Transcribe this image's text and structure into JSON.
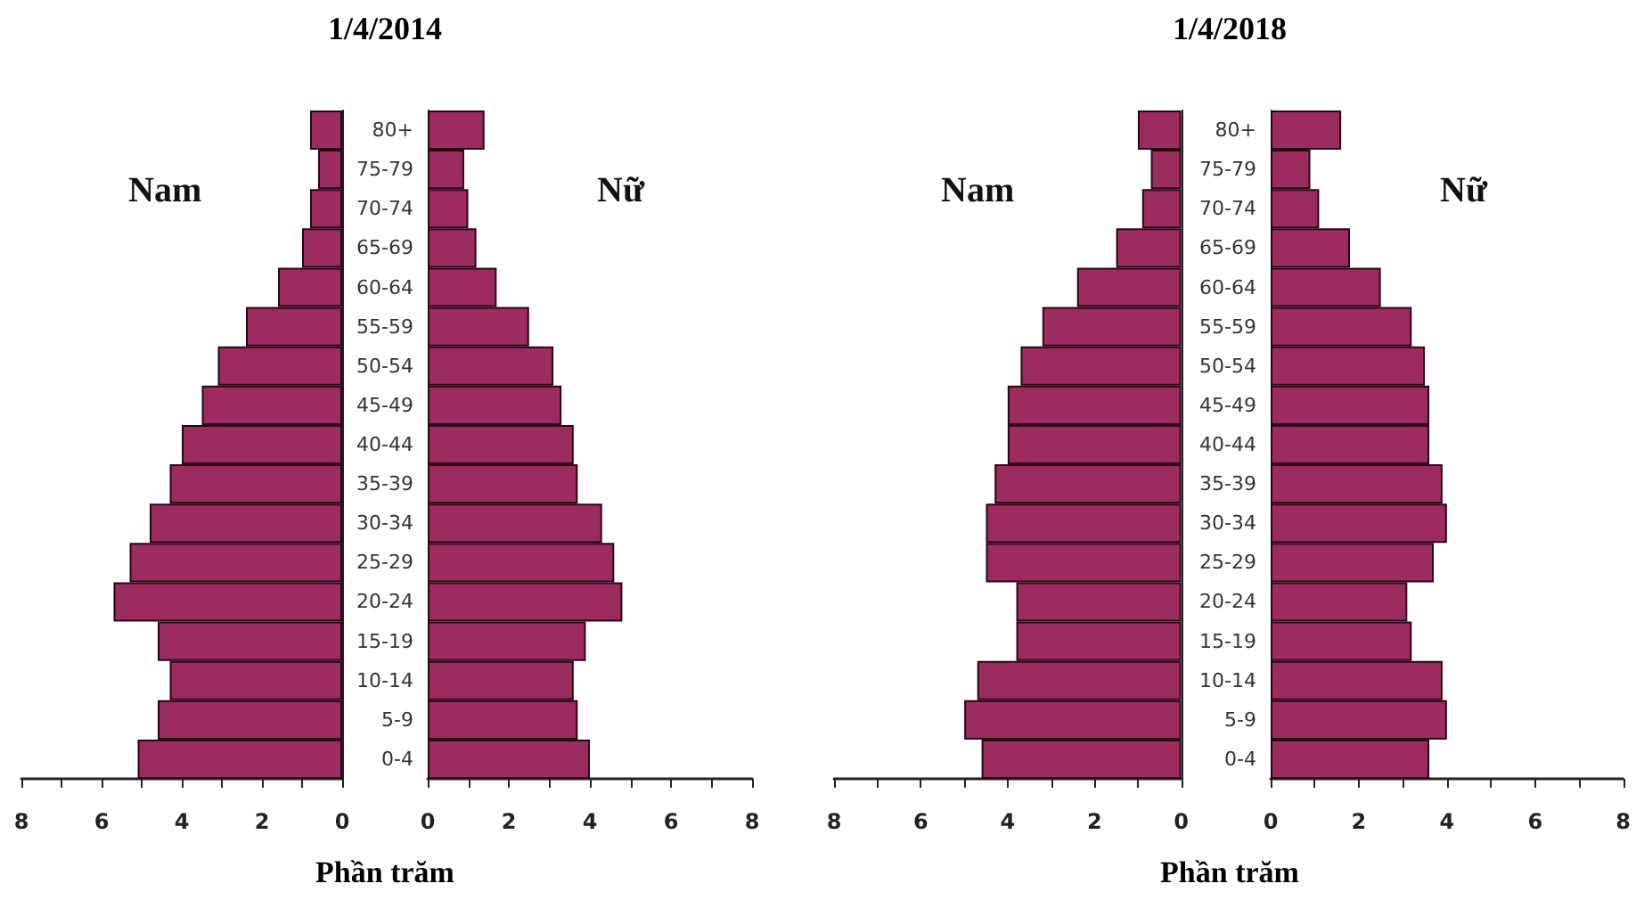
{
  "chart_data": [
    {
      "type": "bar",
      "orientation": "horizontal",
      "title": "1/4/2014",
      "xlabel": "Phần trăm",
      "annotations": [
        "Nam"
      ],
      "categories": [
        null,
        null,
        null,
        null,
        null,
        null,
        null,
        null,
        null,
        null,
        null,
        null,
        null,
        null,
        null,
        null,
        null
      ],
      "values": [
        0.8,
        0.6,
        0.8,
        1.0,
        1.6,
        2.4,
        3.1,
        3.5,
        4.0,
        4.3,
        4.8,
        5.3,
        5.7,
        4.6,
        4.3,
        4.6,
        5.1
      ],
      "color": "#9c2b5f",
      "xlim": [
        8,
        0
      ],
      "xticks": [
        8,
        {
          "value": 7,
          "label": null
        },
        6,
        {
          "value": 5,
          "label": null
        },
        4,
        {
          "value": 3,
          "label": null
        },
        2,
        {
          "value": 1,
          "label": null
        },
        0
      ],
      "tick_labels": "x"
    },
    {
      "type": "bar",
      "orientation": "horizontal",
      "annotations": [
        "Nữ"
      ],
      "categories": [
        "80+",
        "75-79",
        "70-74",
        "65-69",
        "60-64",
        "55-59",
        "50-54",
        "45-49",
        "40-44",
        "35-39",
        "30-34",
        "25-29",
        "20-24",
        "15-19",
        "10-14",
        "5-9",
        "0-4"
      ],
      "values": [
        1.4,
        0.9,
        1.0,
        1.2,
        1.7,
        2.5,
        3.1,
        3.3,
        3.6,
        3.7,
        4.3,
        4.6,
        4.8,
        3.9,
        3.6,
        3.7,
        4.0
      ],
      "color": "#9c2b5f",
      "xlim": [
        0,
        8
      ],
      "xticks": [
        0,
        {
          "value": 1,
          "label": null
        },
        2,
        {
          "value": 3,
          "label": null
        },
        4,
        {
          "value": 5,
          "label": null
        },
        6,
        {
          "value": 7,
          "label": null
        },
        8
      ]
    },
    {
      "type": "bar",
      "orientation": "horizontal",
      "title": "1/4/2018",
      "xlabel": "Phần trăm",
      "annotations": [
        "Nam"
      ],
      "categories": [
        null,
        null,
        null,
        null,
        null,
        null,
        null,
        null,
        null,
        null,
        null,
        null,
        null,
        null,
        null,
        null,
        null
      ],
      "values": [
        1.0,
        0.7,
        0.9,
        1.5,
        2.4,
        3.2,
        3.7,
        4.0,
        4.0,
        4.3,
        4.5,
        4.5,
        3.8,
        3.8,
        4.7,
        5.0,
        4.6
      ],
      "color": "#9c2b5f",
      "xlim": [
        8,
        0
      ],
      "xticks": [
        8,
        {
          "value": 7,
          "label": null
        },
        6,
        {
          "value": 5,
          "label": null
        },
        4,
        {
          "value": 3,
          "label": null
        },
        2,
        {
          "value": 1,
          "label": null
        },
        0
      ],
      "tick_labels": "x"
    },
    {
      "type": "bar",
      "orientation": "horizontal",
      "annotations": [
        "Nữ"
      ],
      "categories": [
        "80+",
        "75-79",
        "70-74",
        "65-69",
        "60-64",
        "55-59",
        "50-54",
        "45-49",
        "40-44",
        "35-39",
        "30-34",
        "25-29",
        "20-24",
        "15-19",
        "10-14",
        "5-9",
        "0-4"
      ],
      "values": [
        1.6,
        0.9,
        1.1,
        1.8,
        2.5,
        3.2,
        3.5,
        3.6,
        3.6,
        3.9,
        4.0,
        3.7,
        3.1,
        3.2,
        3.9,
        4.0,
        3.6
      ],
      "color": "#9c2b5f",
      "xlim": [
        0,
        8
      ],
      "xticks": [
        0,
        {
          "value": 1,
          "label": null
        },
        2,
        {
          "value": 3,
          "label": null
        },
        4,
        {
          "value": 5,
          "label": null
        },
        6,
        {
          "value": 7,
          "label": null
        },
        8
      ]
    }
  ]
}
